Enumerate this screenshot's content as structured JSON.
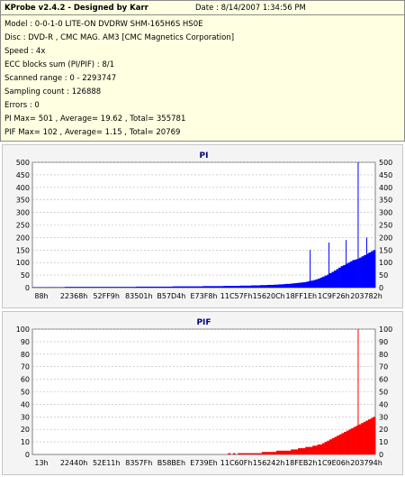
{
  "info": {
    "title": "KProbe v2.4.2 - Designed by Karr",
    "date": "Date : 8/14/2007 1:34:56 PM",
    "lines": [
      "Model : 0-0-1-0 LITE-ON DVDRW SHM-165H6S HS0E",
      "Disc : DVD-R , CMC MAG. AM3 [CMC Magnetics Corporation]",
      "Speed : 4x",
      "ECC blocks sum (PI/PIF) : 8/1",
      "Scanned range : 0 - 2293747",
      "Sampling count : 126888",
      "Errors : 0",
      "PI Max= 501 , Average= 19.62 , Total= 355781",
      "PIF Max= 102 , Average= 1.15 , Total= 20769"
    ]
  },
  "colors": {
    "pi": "#0000ff",
    "pif": "#ff0000",
    "title": "#000080",
    "panel": "#f4f4f4"
  },
  "chart_data": [
    {
      "type": "bar",
      "title": "PI",
      "ylim": [
        0,
        500
      ],
      "yticks": [
        0,
        50,
        100,
        150,
        200,
        250,
        300,
        350,
        400,
        450,
        500
      ],
      "xtick_labels": [
        "88h",
        "22368h",
        "52FF9h",
        "83501h",
        "B57D4h",
        "E73F8h",
        "11C57Fh",
        "15620Ch",
        "18FF1Eh",
        "1C9F26h",
        "203782h"
      ],
      "grid": true,
      "color": "#0000ff",
      "values": [
        2,
        2,
        2,
        2,
        2,
        2,
        2,
        2,
        2,
        2,
        2,
        2,
        2,
        2,
        3,
        3,
        3,
        3,
        3,
        3,
        3,
        3,
        3,
        3,
        3,
        3,
        3,
        3,
        3,
        3,
        3,
        3,
        3,
        3,
        3,
        3,
        3,
        3,
        3,
        3,
        3,
        3,
        3,
        3,
        3,
        4,
        4,
        4,
        4,
        4,
        4,
        4,
        4,
        4,
        4,
        4,
        4,
        4,
        4,
        4,
        4,
        5,
        5,
        5,
        5,
        5,
        5,
        5,
        5,
        5,
        5,
        5,
        5,
        5,
        6,
        6,
        6,
        6,
        6,
        6,
        6,
        6,
        6,
        7,
        7,
        7,
        7,
        7,
        7,
        7,
        8,
        8,
        8,
        8,
        8,
        9,
        9,
        9,
        9,
        10,
        10,
        10,
        11,
        11,
        11,
        12,
        12,
        13,
        13,
        14,
        15,
        15,
        16,
        17,
        18,
        19,
        20,
        21,
        22,
        24,
        26,
        28,
        30,
        33,
        36,
        40,
        44,
        48,
        52,
        58,
        63,
        68,
        74,
        80,
        86,
        90,
        95,
        100,
        105,
        110,
        112,
        115,
        120,
        125,
        130,
        135,
        140,
        145,
        150
      ],
      "spikes": [
        {
          "x_frac": 0.95,
          "value": 501
        },
        {
          "x_frac": 0.81,
          "value": 150
        },
        {
          "x_frac": 0.865,
          "value": 180
        },
        {
          "x_frac": 0.915,
          "value": 190
        },
        {
          "x_frac": 0.975,
          "value": 200
        }
      ]
    },
    {
      "type": "bar",
      "title": "PIF",
      "ylim": [
        0,
        100
      ],
      "yticks": [
        0,
        10,
        20,
        30,
        40,
        50,
        60,
        70,
        80,
        90,
        100
      ],
      "xtick_labels": [
        "13h",
        "22440h",
        "52E11h",
        "8357Fh",
        "B58BEh",
        "E739Eh",
        "11C60Fh",
        "156242h",
        "18FEB2h",
        "1C9E06h",
        "203794h"
      ],
      "grid": true,
      "color": "#ff0000",
      "values": [
        0,
        0,
        0,
        0,
        0,
        0,
        0,
        0,
        0,
        0,
        0,
        0,
        0,
        0,
        0,
        0,
        0,
        0,
        0,
        0,
        0,
        0,
        0,
        0,
        0,
        0,
        0,
        0,
        0,
        0,
        0,
        0,
        0,
        0,
        0,
        0,
        0,
        0,
        0,
        0,
        0,
        0,
        0,
        0,
        0,
        0,
        0,
        0,
        0,
        0,
        0,
        0,
        0,
        0,
        0,
        0,
        0,
        0,
        0,
        0,
        0,
        0,
        0,
        0,
        0,
        0,
        0,
        0,
        0,
        0,
        0,
        0,
        0,
        0,
        0,
        0,
        0,
        0,
        0,
        0,
        0,
        1,
        0,
        1,
        0,
        1,
        1,
        1,
        1,
        1,
        1,
        1,
        1,
        1,
        1,
        2,
        2,
        2,
        2,
        2,
        2,
        3,
        3,
        3,
        3,
        3,
        3,
        4,
        4,
        4,
        5,
        5,
        5,
        6,
        6,
        6,
        7,
        7,
        8,
        8,
        9,
        10,
        11,
        12,
        13,
        14,
        15,
        16,
        17,
        18,
        19,
        20,
        21,
        22,
        23,
        24,
        25,
        26,
        27,
        28,
        29,
        30
      ],
      "spikes": [
        {
          "x_frac": 0.95,
          "value": 102
        }
      ]
    }
  ]
}
